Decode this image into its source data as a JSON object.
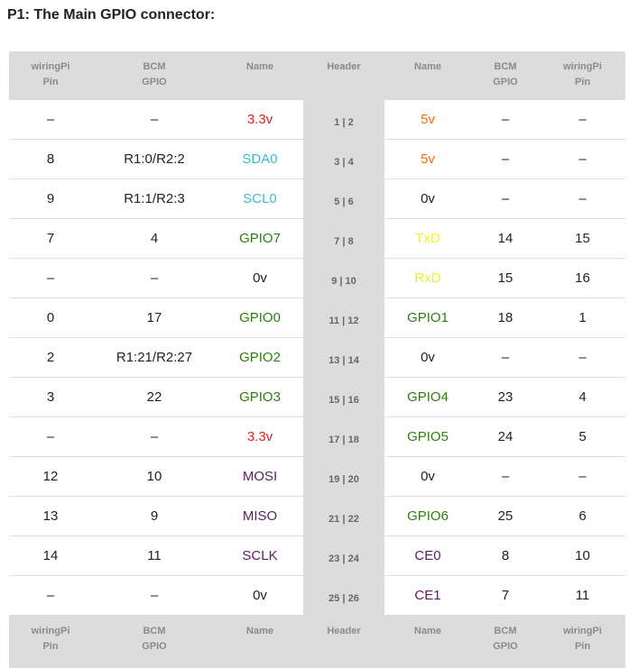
{
  "title": "P1: The Main GPIO connector:",
  "headers": {
    "wiringpi": [
      "wiringPi",
      "Pin"
    ],
    "bcm": [
      "BCM",
      "GPIO"
    ],
    "name": "Name",
    "header": "Header"
  },
  "colors": {
    "red": "#e2211c",
    "orange": "#ff6a00",
    "teal": "#3cbcc3",
    "green": "#2f7d12",
    "yellow": "#f2ee2a",
    "purple": "#5e1a63",
    "black": "#222222"
  },
  "rows": [
    {
      "lw": "–",
      "lb": "–",
      "ln": "3.3v",
      "lc": "red",
      "hdr": "1 | 2",
      "rn": "5v",
      "rc": "orange",
      "rb": "–",
      "rw": "–"
    },
    {
      "lw": "8",
      "lb": "R1:0/R2:2",
      "ln": "SDA0",
      "lc": "teal",
      "hdr": "3 | 4",
      "rn": "5v",
      "rc": "orange",
      "rb": "–",
      "rw": "–"
    },
    {
      "lw": "9",
      "lb": "R1:1/R2:3",
      "ln": "SCL0",
      "lc": "teal",
      "hdr": "5 | 6",
      "rn": "0v",
      "rc": "black",
      "rb": "–",
      "rw": "–"
    },
    {
      "lw": "7",
      "lb": "4",
      "ln": "GPIO7",
      "lc": "green",
      "hdr": "7 | 8",
      "rn": "TxD",
      "rc": "yellow",
      "rb": "14",
      "rw": "15"
    },
    {
      "lw": "–",
      "lb": "–",
      "ln": "0v",
      "lc": "black",
      "hdr": "9 | 10",
      "rn": "RxD",
      "rc": "yellow",
      "rb": "15",
      "rw": "16"
    },
    {
      "lw": "0",
      "lb": "17",
      "ln": "GPIO0",
      "lc": "green",
      "hdr": "11 | 12",
      "rn": "GPIO1",
      "rc": "green",
      "rb": "18",
      "rw": "1"
    },
    {
      "lw": "2",
      "lb": "R1:21/R2:27",
      "ln": "GPIO2",
      "lc": "green",
      "hdr": "13 | 14",
      "rn": "0v",
      "rc": "black",
      "rb": "–",
      "rw": "–"
    },
    {
      "lw": "3",
      "lb": "22",
      "ln": "GPIO3",
      "lc": "green",
      "hdr": "15 | 16",
      "rn": "GPIO4",
      "rc": "green",
      "rb": "23",
      "rw": "4"
    },
    {
      "lw": "–",
      "lb": "–",
      "ln": "3.3v",
      "lc": "red",
      "hdr": "17 | 18",
      "rn": "GPIO5",
      "rc": "green",
      "rb": "24",
      "rw": "5"
    },
    {
      "lw": "12",
      "lb": "10",
      "ln": "MOSI",
      "lc": "purple",
      "hdr": "19 | 20",
      "rn": "0v",
      "rc": "black",
      "rb": "–",
      "rw": "–"
    },
    {
      "lw": "13",
      "lb": "9",
      "ln": "MISO",
      "lc": "purple",
      "hdr": "21 | 22",
      "rn": "GPIO6",
      "rc": "green",
      "rb": "25",
      "rw": "6"
    },
    {
      "lw": "14",
      "lb": "11",
      "ln": "SCLK",
      "lc": "purple",
      "hdr": "23 | 24",
      "rn": "CE0",
      "rc": "purple",
      "rb": "8",
      "rw": "10"
    },
    {
      "lw": "–",
      "lb": "–",
      "ln": "0v",
      "lc": "black",
      "hdr": "25 | 26",
      "rn": "CE1",
      "rc": "purple",
      "rb": "7",
      "rw": "11"
    }
  ]
}
